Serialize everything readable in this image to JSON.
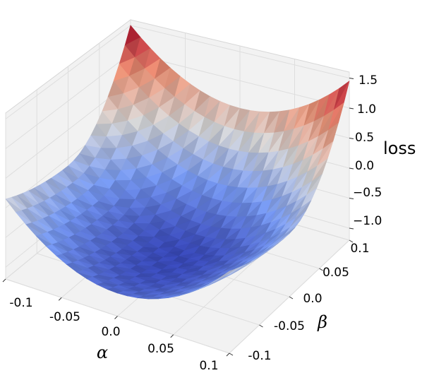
{
  "chart_data": {
    "type": "surface3d",
    "title": "",
    "xlabel": "α",
    "ylabel": "β",
    "zlabel": "loss",
    "x_ticks": [
      "-0.1",
      "-0.05",
      "0.0",
      "0.05",
      "0.1"
    ],
    "y_ticks": [
      "-0.1",
      "-0.05",
      "0.0",
      "0.05",
      "0.1"
    ],
    "z_ticks": [
      "−1.0",
      "−0.5",
      "0.0",
      "0.5",
      "1.0",
      "1.5"
    ],
    "xlim": [
      -0.1,
      0.1
    ],
    "ylim": [
      -0.1,
      0.1
    ],
    "zlim": [
      -1.2,
      1.6
    ],
    "colormap": "coolwarm",
    "grid": true,
    "corner_values": {
      "alpha_min_beta_min": 0.15,
      "alpha_min_beta_max": 1.5,
      "alpha_max_beta_max": 1.45,
      "alpha_max_beta_min": 0.1
    },
    "minimum": {
      "alpha": 0.0,
      "beta": 0.0,
      "loss": -1.1
    }
  }
}
